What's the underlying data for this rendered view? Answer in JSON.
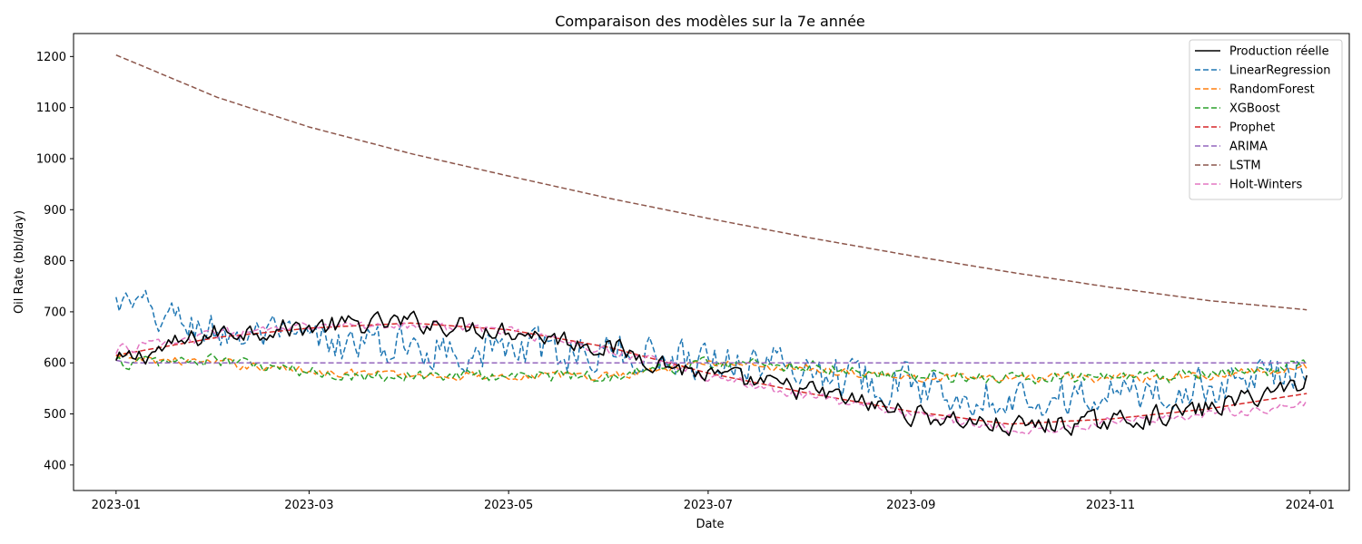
{
  "chart_data": {
    "type": "line",
    "title": "Comparaison des modèles sur la 7e année",
    "xlabel": "Date",
    "ylabel": "Oil Rate (bbl/day)",
    "xlim": [
      "2022-12-19",
      "2024-01-13"
    ],
    "ylim": [
      350,
      1245
    ],
    "x_ticks": [
      "2023-01",
      "2023-03",
      "2023-05",
      "2023-07",
      "2023-09",
      "2023-11",
      "2024-01"
    ],
    "y_ticks": [
      400,
      500,
      600,
      700,
      800,
      900,
      1000,
      1100,
      1200
    ],
    "legend_position": "top-right",
    "grid": false,
    "x_range": [
      "2023-01-01",
      "2023-12-31"
    ],
    "x_step_days": 1,
    "series": [
      {
        "name": "Production réelle",
        "color": "#000000",
        "style": "solid",
        "anchors": [
          [
            "2023-01-01",
            600
          ],
          [
            "2023-02-01",
            660
          ],
          [
            "2023-03-01",
            670
          ],
          [
            "2023-04-01",
            680
          ],
          [
            "2023-05-01",
            665
          ],
          [
            "2023-06-01",
            630
          ],
          [
            "2023-07-01",
            575
          ],
          [
            "2023-08-01",
            545
          ],
          [
            "2023-09-01",
            500
          ],
          [
            "2023-10-01",
            475
          ],
          [
            "2023-11-01",
            485
          ],
          [
            "2023-12-01",
            510
          ],
          [
            "2023-12-31",
            565
          ]
        ],
        "noise": 28
      },
      {
        "name": "LinearRegression",
        "color": "#1f77b4",
        "style": "dashed",
        "anchors": [
          [
            "2023-01-01",
            715
          ],
          [
            "2023-02-01",
            660
          ],
          [
            "2023-03-01",
            640
          ],
          [
            "2023-04-01",
            630
          ],
          [
            "2023-05-01",
            625
          ],
          [
            "2023-06-01",
            620
          ],
          [
            "2023-07-01",
            610
          ],
          [
            "2023-08-01",
            590
          ],
          [
            "2023-09-01",
            555
          ],
          [
            "2023-10-01",
            535
          ],
          [
            "2023-11-01",
            535
          ],
          [
            "2023-12-01",
            550
          ],
          [
            "2023-12-31",
            600
          ]
        ],
        "noise": 55
      },
      {
        "name": "RandomForest",
        "color": "#ff7f0e",
        "style": "dashed",
        "anchors": [
          [
            "2023-01-01",
            610
          ],
          [
            "2023-02-01",
            600
          ],
          [
            "2023-03-01",
            585
          ],
          [
            "2023-04-01",
            575
          ],
          [
            "2023-05-01",
            575
          ],
          [
            "2023-06-01",
            575
          ],
          [
            "2023-07-01",
            600
          ],
          [
            "2023-08-01",
            590
          ],
          [
            "2023-09-01",
            570
          ],
          [
            "2023-10-01",
            570
          ],
          [
            "2023-11-01",
            570
          ],
          [
            "2023-12-01",
            575
          ],
          [
            "2023-12-31",
            590
          ]
        ],
        "noise": 12
      },
      {
        "name": "XGBoost",
        "color": "#2ca02c",
        "style": "dashed",
        "anchors": [
          [
            "2023-01-01",
            600
          ],
          [
            "2023-02-01",
            605
          ],
          [
            "2023-03-01",
            580
          ],
          [
            "2023-04-01",
            575
          ],
          [
            "2023-05-01",
            575
          ],
          [
            "2023-06-01",
            575
          ],
          [
            "2023-07-01",
            600
          ],
          [
            "2023-08-01",
            595
          ],
          [
            "2023-09-01",
            575
          ],
          [
            "2023-10-01",
            570
          ],
          [
            "2023-11-01",
            570
          ],
          [
            "2023-12-01",
            575
          ],
          [
            "2023-12-31",
            595
          ]
        ],
        "noise": 18
      },
      {
        "name": "Prophet",
        "color": "#d62728",
        "style": "dashed",
        "anchors": [
          [
            "2023-01-01",
            615
          ],
          [
            "2023-02-01",
            650
          ],
          [
            "2023-03-01",
            668
          ],
          [
            "2023-04-01",
            678
          ],
          [
            "2023-05-01",
            665
          ],
          [
            "2023-06-01",
            630
          ],
          [
            "2023-07-01",
            580
          ],
          [
            "2023-08-01",
            540
          ],
          [
            "2023-09-01",
            505
          ],
          [
            "2023-10-01",
            480
          ],
          [
            "2023-11-01",
            490
          ],
          [
            "2023-12-01",
            510
          ],
          [
            "2023-12-31",
            540
          ]
        ],
        "noise": 0
      },
      {
        "name": "ARIMA",
        "color": "#9467bd",
        "style": "dashed",
        "anchors": [
          [
            "2023-01-01",
            605
          ],
          [
            "2023-01-05",
            600
          ],
          [
            "2023-12-31",
            600
          ]
        ],
        "noise": 0
      },
      {
        "name": "LSTM",
        "color": "#8c564b",
        "style": "dashed",
        "anchors": [
          [
            "2023-01-01",
            1203
          ],
          [
            "2023-02-01",
            1120
          ],
          [
            "2023-03-01",
            1062
          ],
          [
            "2023-04-01",
            1010
          ],
          [
            "2023-05-01",
            966
          ],
          [
            "2023-06-01",
            922
          ],
          [
            "2023-07-01",
            883
          ],
          [
            "2023-08-01",
            845
          ],
          [
            "2023-09-01",
            810
          ],
          [
            "2023-10-01",
            778
          ],
          [
            "2023-11-01",
            748
          ],
          [
            "2023-12-01",
            722
          ],
          [
            "2023-12-31",
            704
          ]
        ],
        "noise": 0
      },
      {
        "name": "Holt-Winters",
        "color": "#e377c2",
        "style": "dashed",
        "anchors": [
          [
            "2023-01-01",
            625
          ],
          [
            "2023-02-01",
            655
          ],
          [
            "2023-03-01",
            668
          ],
          [
            "2023-04-01",
            676
          ],
          [
            "2023-05-01",
            662
          ],
          [
            "2023-06-01",
            625
          ],
          [
            "2023-07-01",
            575
          ],
          [
            "2023-08-01",
            535
          ],
          [
            "2023-09-01",
            498
          ],
          [
            "2023-10-01",
            472
          ],
          [
            "2023-11-01",
            482
          ],
          [
            "2023-12-01",
            500
          ],
          [
            "2023-12-31",
            520
          ]
        ],
        "noise": 14
      }
    ]
  }
}
